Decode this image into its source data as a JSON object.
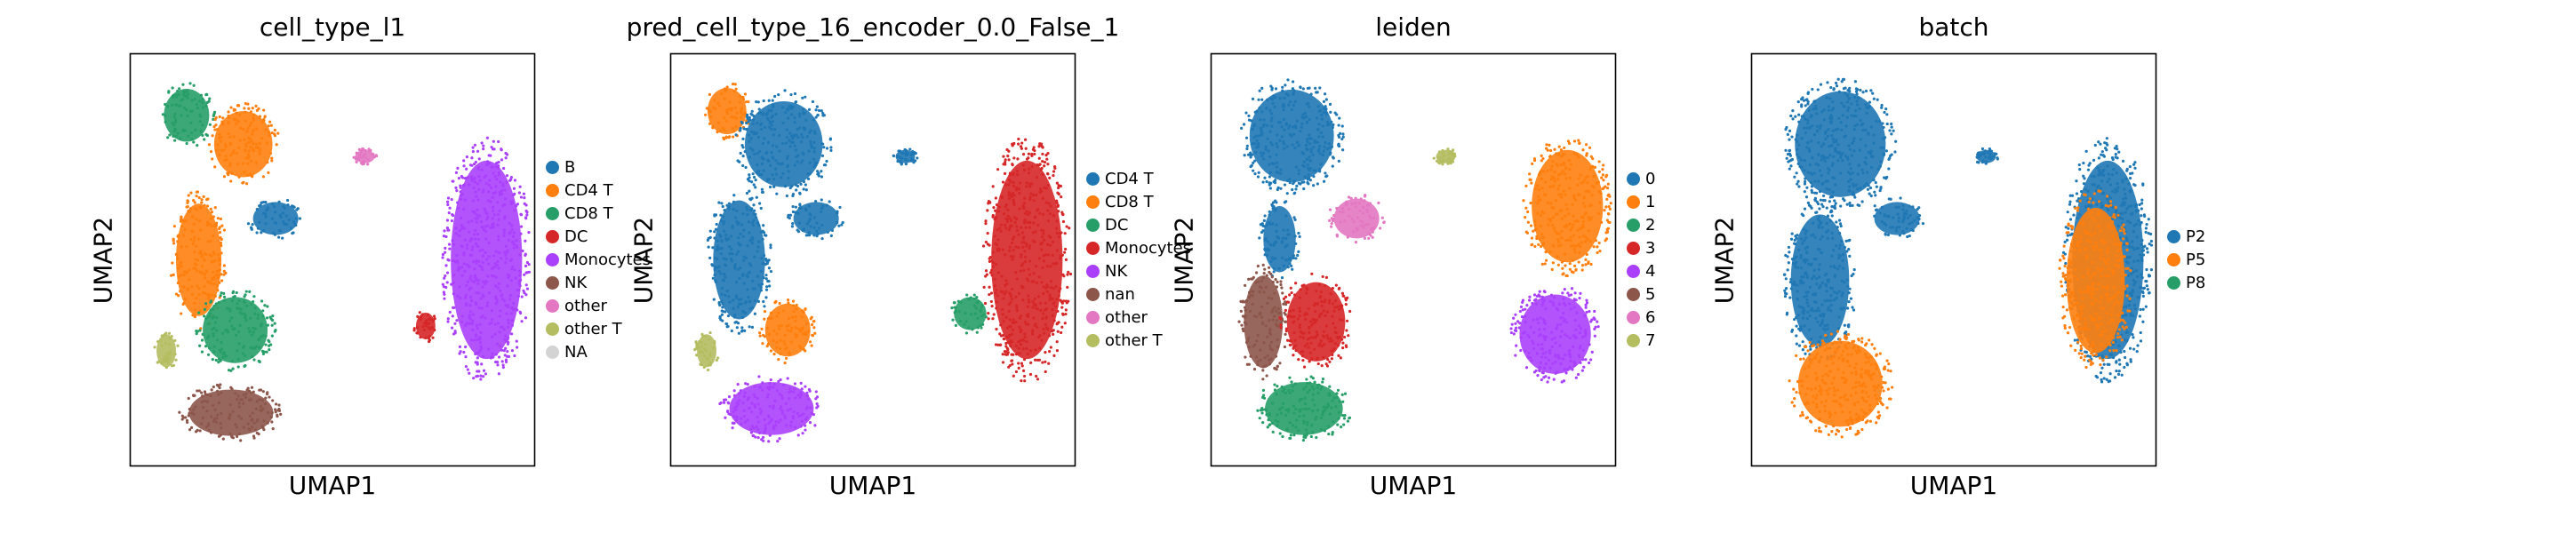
{
  "chart_data": [
    {
      "type": "scatter",
      "title": "cell_type_l1",
      "xlabel": "UMAP1",
      "ylabel": "UMAP2",
      "legend_placement": "right",
      "legend": [
        {
          "label": "B",
          "color": "#1f77b4"
        },
        {
          "label": "CD4 T",
          "color": "#ff7f0e"
        },
        {
          "label": "CD8 T",
          "color": "#279e68"
        },
        {
          "label": "DC",
          "color": "#d62728"
        },
        {
          "label": "Monocytes",
          "color": "#aa40fc"
        },
        {
          "label": "NK",
          "color": "#8c564b"
        },
        {
          "label": "other",
          "color": "#e377c2"
        },
        {
          "label": "other T",
          "color": "#b5bd61"
        },
        {
          "label": "NA",
          "color": "#d3d3d3"
        }
      ],
      "clusters": [
        {
          "label": "CD8 T",
          "region": "top-left",
          "x": 0.14,
          "y": 0.85,
          "rx": 0.07,
          "ry": 0.08
        },
        {
          "label": "CD4 T",
          "region": "upper-left",
          "x": 0.28,
          "y": 0.78,
          "rx": 0.09,
          "ry": 0.1
        },
        {
          "label": "CD4 T",
          "region": "left-middle",
          "x": 0.17,
          "y": 0.5,
          "rx": 0.07,
          "ry": 0.17
        },
        {
          "label": "B",
          "region": "middle",
          "x": 0.36,
          "y": 0.6,
          "rx": 0.07,
          "ry": 0.05
        },
        {
          "label": "CD8 T",
          "region": "lower-left",
          "x": 0.26,
          "y": 0.33,
          "rx": 0.1,
          "ry": 0.1
        },
        {
          "label": "other T",
          "region": "lower-left",
          "x": 0.09,
          "y": 0.28,
          "rx": 0.03,
          "ry": 0.05
        },
        {
          "label": "NK",
          "region": "bottom",
          "x": 0.25,
          "y": 0.13,
          "rx": 0.13,
          "ry": 0.07
        },
        {
          "label": "other",
          "region": "top-right",
          "x": 0.58,
          "y": 0.75,
          "rx": 0.03,
          "ry": 0.02
        },
        {
          "label": "Monocytes",
          "region": "right",
          "x": 0.88,
          "y": 0.5,
          "rx": 0.11,
          "ry": 0.3
        },
        {
          "label": "DC",
          "region": "right",
          "x": 0.73,
          "y": 0.34,
          "rx": 0.03,
          "ry": 0.04
        }
      ]
    },
    {
      "type": "scatter",
      "title": "pred_cell_type_16_encoder_0.0_False_1",
      "xlabel": "UMAP1",
      "ylabel": "UMAP2",
      "legend_placement": "right",
      "legend": [
        {
          "label": "CD4 T",
          "color": "#1f77b4"
        },
        {
          "label": "CD8 T",
          "color": "#ff7f0e"
        },
        {
          "label": "DC",
          "color": "#279e68"
        },
        {
          "label": "Monocytes",
          "color": "#d62728"
        },
        {
          "label": "NK",
          "color": "#aa40fc"
        },
        {
          "label": "nan",
          "color": "#8c564b"
        },
        {
          "label": "other",
          "color": "#e377c2"
        },
        {
          "label": "other T",
          "color": "#b5bd61"
        }
      ],
      "clusters": [
        {
          "label": "CD8 T",
          "region": "top-left",
          "x": 0.14,
          "y": 0.86,
          "rx": 0.06,
          "ry": 0.07
        },
        {
          "label": "CD4 T",
          "region": "upper-left",
          "x": 0.28,
          "y": 0.78,
          "rx": 0.12,
          "ry": 0.13
        },
        {
          "label": "CD4 T",
          "region": "left-middle",
          "x": 0.17,
          "y": 0.5,
          "rx": 0.08,
          "ry": 0.18
        },
        {
          "label": "CD4 T",
          "region": "middle",
          "x": 0.36,
          "y": 0.6,
          "rx": 0.07,
          "ry": 0.05
        },
        {
          "label": "CD8 T",
          "region": "lower-left",
          "x": 0.29,
          "y": 0.33,
          "rx": 0.07,
          "ry": 0.08
        },
        {
          "label": "other T",
          "region": "lower-left",
          "x": 0.09,
          "y": 0.28,
          "rx": 0.03,
          "ry": 0.05
        },
        {
          "label": "NK",
          "region": "bottom",
          "x": 0.25,
          "y": 0.14,
          "rx": 0.13,
          "ry": 0.08
        },
        {
          "label": "CD4 T",
          "region": "top-right",
          "x": 0.58,
          "y": 0.75,
          "rx": 0.03,
          "ry": 0.02
        },
        {
          "label": "Monocytes",
          "region": "right",
          "x": 0.88,
          "y": 0.5,
          "rx": 0.11,
          "ry": 0.3
        },
        {
          "label": "DC",
          "region": "right",
          "x": 0.74,
          "y": 0.37,
          "rx": 0.05,
          "ry": 0.05
        }
      ]
    },
    {
      "type": "scatter",
      "title": "leiden",
      "xlabel": "UMAP1",
      "ylabel": "UMAP2",
      "legend_placement": "right",
      "legend": [
        {
          "label": "0",
          "color": "#1f77b4"
        },
        {
          "label": "1",
          "color": "#ff7f0e"
        },
        {
          "label": "2",
          "color": "#279e68"
        },
        {
          "label": "3",
          "color": "#d62728"
        },
        {
          "label": "4",
          "color": "#aa40fc"
        },
        {
          "label": "5",
          "color": "#8c564b"
        },
        {
          "label": "6",
          "color": "#e377c2"
        },
        {
          "label": "7",
          "color": "#b5bd61"
        }
      ],
      "clusters": [
        {
          "label": "0",
          "region": "upper-left",
          "x": 0.2,
          "y": 0.8,
          "rx": 0.13,
          "ry": 0.14
        },
        {
          "label": "0",
          "region": "left-middle",
          "x": 0.17,
          "y": 0.55,
          "rx": 0.05,
          "ry": 0.1
        },
        {
          "label": "6",
          "region": "middle",
          "x": 0.36,
          "y": 0.6,
          "rx": 0.07,
          "ry": 0.06
        },
        {
          "label": "5",
          "region": "lower-left",
          "x": 0.13,
          "y": 0.35,
          "rx": 0.06,
          "ry": 0.14
        },
        {
          "label": "3",
          "region": "lower-middle",
          "x": 0.26,
          "y": 0.35,
          "rx": 0.09,
          "ry": 0.12
        },
        {
          "label": "2",
          "region": "bottom",
          "x": 0.23,
          "y": 0.14,
          "rx": 0.12,
          "ry": 0.08
        },
        {
          "label": "7",
          "region": "top-right",
          "x": 0.58,
          "y": 0.75,
          "rx": 0.03,
          "ry": 0.02
        },
        {
          "label": "1",
          "region": "right-upper",
          "x": 0.88,
          "y": 0.63,
          "rx": 0.11,
          "ry": 0.17
        },
        {
          "label": "4",
          "region": "right-lower",
          "x": 0.85,
          "y": 0.32,
          "rx": 0.11,
          "ry": 0.12
        }
      ]
    },
    {
      "type": "scatter",
      "title": "batch",
      "xlabel": "UMAP1",
      "ylabel": "UMAP2",
      "legend_placement": "right",
      "legend": [
        {
          "label": "P2",
          "color": "#1f77b4"
        },
        {
          "label": "P5",
          "color": "#ff7f0e"
        },
        {
          "label": "P8",
          "color": "#279e68"
        }
      ],
      "clusters": [
        {
          "label": "P2",
          "region": "upper-left",
          "x": 0.22,
          "y": 0.78,
          "rx": 0.14,
          "ry": 0.16
        },
        {
          "label": "P2",
          "region": "left-middle",
          "x": 0.17,
          "y": 0.45,
          "rx": 0.09,
          "ry": 0.2
        },
        {
          "label": "P2",
          "region": "middle",
          "x": 0.36,
          "y": 0.6,
          "rx": 0.07,
          "ry": 0.05
        },
        {
          "label": "P5",
          "region": "lower-left",
          "x": 0.22,
          "y": 0.2,
          "rx": 0.13,
          "ry": 0.13
        },
        {
          "label": "P2",
          "region": "top-right",
          "x": 0.58,
          "y": 0.75,
          "rx": 0.03,
          "ry": 0.02
        },
        {
          "label": "P2",
          "region": "right",
          "x": 0.88,
          "y": 0.5,
          "rx": 0.11,
          "ry": 0.3
        },
        {
          "label": "P5",
          "region": "right",
          "x": 0.85,
          "y": 0.45,
          "rx": 0.09,
          "ry": 0.22
        }
      ]
    }
  ]
}
